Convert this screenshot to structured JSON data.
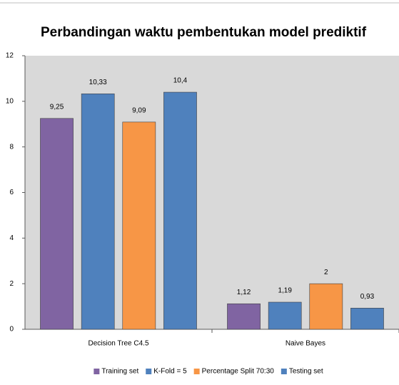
{
  "chart_data": {
    "type": "bar",
    "title": "Perbandingan waktu pembentukan model prediktif",
    "categories": [
      "Decision Tree C4.5",
      "Naive Bayes"
    ],
    "series": [
      {
        "name": "Training set",
        "color": "#8064a2",
        "values": [
          9.25,
          1.12
        ],
        "value_labels": [
          "9,25",
          "1,12"
        ]
      },
      {
        "name": "K-Fold = 5",
        "color": "#4f81bd",
        "values": [
          10.33,
          1.19
        ],
        "value_labels": [
          "10,33",
          "1,19"
        ]
      },
      {
        "name": "Percentage Split 70:30",
        "color": "#f79646",
        "values": [
          9.09,
          2
        ],
        "value_labels": [
          "9,09",
          "2"
        ]
      },
      {
        "name": "Testing set",
        "color": "#4f81bd",
        "values": [
          10.4,
          0.93
        ],
        "value_labels": [
          "10,4",
          "0,93"
        ]
      }
    ],
    "ylim": [
      0,
      12
    ],
    "yticks": [
      0,
      2,
      4,
      6,
      8,
      10,
      12
    ],
    "grid": false,
    "legend": "bottom"
  }
}
